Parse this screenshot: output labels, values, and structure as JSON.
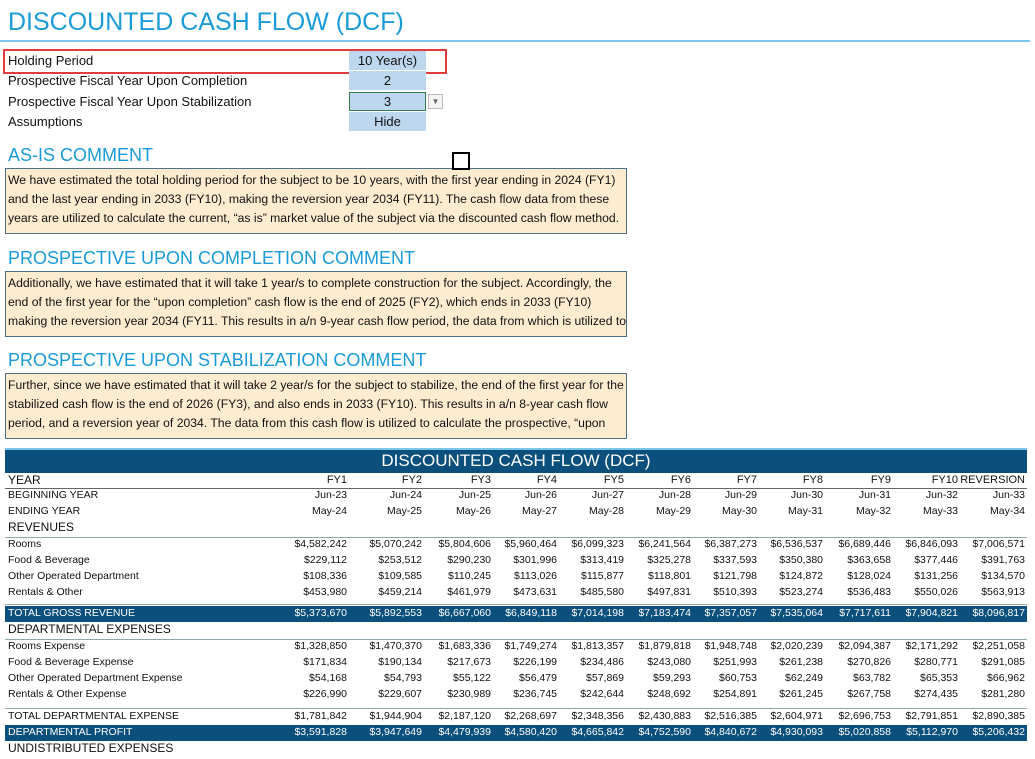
{
  "header": {
    "title": "DISCOUNTED CASH FLOW (DCF)"
  },
  "settings": [
    {
      "label": "Holding Period",
      "value": "10 Year(s)"
    },
    {
      "label": "Prospective Fiscal Year Upon Completion",
      "value": "2"
    },
    {
      "label": "Prospective Fiscal Year Upon Stabilization",
      "value": "3"
    },
    {
      "label": "Assumptions",
      "value": "Hide"
    }
  ],
  "comments": [
    {
      "heading": "AS-IS COMMENT",
      "lines": [
        "We have estimated the total holding period for the subject to be 10 years, with the first year ending in 2024 (FY1)",
        "and the last year ending in 2033 (FY10), making the reversion year 2034 (FY11). The cash flow data from these",
        "years are utilized to calculate the current, “as is” market value of the subject via the discounted cash flow method."
      ]
    },
    {
      "heading": "PROSPECTIVE UPON COMPLETION COMMENT",
      "lines": [
        "Additionally, we have estimated that it will take 1 year/s to complete construction for the subject. Accordingly, the",
        "end of the first year for the “upon completion” cash flow is the end of 2025 (FY2), which ends in 2033 (FY10)",
        "making the reversion year 2034 (FY11. This results in a/n 9-year cash flow period, the data from which is utilized to"
      ]
    },
    {
      "heading": "PROSPECTIVE UPON STABILIZATION COMMENT",
      "lines": [
        "Further, since we have estimated that it will take 2 year/s for the subject to stabilize, the end of the first year for the",
        "stabilized cash flow is the end of 2026 (FY3), and also ends in 2033 (FY10). This results in a/n 8-year cash flow",
        "period, and a reversion year of 2034. The data from this cash flow is utilized to calculate the prospective, “upon"
      ]
    }
  ],
  "table": {
    "title": "DISCOUNTED CASH FLOW (DCF)",
    "columns": [
      "YEAR",
      "FY1",
      "FY2",
      "FY3",
      "FY4",
      "FY5",
      "FY6",
      "FY7",
      "FY8",
      "FY9",
      "FY10",
      "REVERSION"
    ],
    "rows": [
      {
        "label": "BEGINNING YEAR",
        "cells": [
          "Jun-23",
          "Jun-24",
          "Jun-25",
          "Jun-26",
          "Jun-27",
          "Jun-28",
          "Jun-29",
          "Jun-30",
          "Jun-31",
          "Jun-32",
          "Jun-33"
        ]
      },
      {
        "label": "ENDING YEAR",
        "cells": [
          "May-24",
          "May-25",
          "May-26",
          "May-27",
          "May-28",
          "May-29",
          "May-30",
          "May-31",
          "May-32",
          "May-33",
          "May-34"
        ]
      },
      {
        "label": "REVENUES"
      },
      {
        "label": "Rooms",
        "cells": [
          "$4,582,242",
          "$5,070,242",
          "$5,804,606",
          "$5,960,464",
          "$6,099,323",
          "$6,241,564",
          "$6,387,273",
          "$6,536,537",
          "$6,689,446",
          "$6,846,093",
          "$7,006,571"
        ]
      },
      {
        "label": "Food & Beverage",
        "cells": [
          "$229,112",
          "$253,512",
          "$290,230",
          "$301,996",
          "$313,419",
          "$325,278",
          "$337,593",
          "$350,380",
          "$363,658",
          "$377,446",
          "$391,763"
        ]
      },
      {
        "label": "Other Operated Department",
        "cells": [
          "$108,336",
          "$109,585",
          "$110,245",
          "$113,026",
          "$115,877",
          "$118,801",
          "$121,798",
          "$124,872",
          "$128,024",
          "$131,256",
          "$134,570"
        ]
      },
      {
        "label": "Rentals & Other",
        "cells": [
          "$453,980",
          "$459,214",
          "$461,979",
          "$473,631",
          "$485,580",
          "$497,831",
          "$510,393",
          "$523,274",
          "$536,483",
          "$550,026",
          "$563,913"
        ]
      },
      {
        "label": "TOTAL GROSS REVENUE",
        "cells": [
          "$5,373,670",
          "$5,892,553",
          "$6,667,060",
          "$6,849,118",
          "$7,014,198",
          "$7,183,474",
          "$7,357,057",
          "$7,535,064",
          "$7,717,611",
          "$7,904,821",
          "$8,096,817"
        ]
      },
      {
        "label": "DEPARTMENTAL EXPENSES"
      },
      {
        "label": "Rooms Expense",
        "cells": [
          "$1,328,850",
          "$1,470,370",
          "$1,683,336",
          "$1,749,274",
          "$1,813,357",
          "$1,879,818",
          "$1,948,748",
          "$2,020,239",
          "$2,094,387",
          "$2,171,292",
          "$2,251,058"
        ]
      },
      {
        "label": "Food & Beverage Expense",
        "cells": [
          "$171,834",
          "$190,134",
          "$217,673",
          "$226,199",
          "$234,486",
          "$243,080",
          "$251,993",
          "$261,238",
          "$270,826",
          "$280,771",
          "$291,085"
        ]
      },
      {
        "label": "Other Operated Department Expense",
        "cells": [
          "$54,168",
          "$54,793",
          "$55,122",
          "$56,479",
          "$57,869",
          "$59,293",
          "$60,753",
          "$62,249",
          "$63,782",
          "$65,353",
          "$66,962"
        ]
      },
      {
        "label": "Rentals & Other Expense",
        "cells": [
          "$226,990",
          "$229,607",
          "$230,989",
          "$236,745",
          "$242,644",
          "$248,692",
          "$254,891",
          "$261,245",
          "$267,758",
          "$274,435",
          "$281,280"
        ]
      },
      {
        "label": "TOTAL DEPARTMENTAL EXPENSE",
        "cells": [
          "$1,781,842",
          "$1,944,904",
          "$2,187,120",
          "$2,268,697",
          "$2,348,356",
          "$2,430,883",
          "$2,516,385",
          "$2,604,971",
          "$2,696,753",
          "$2,791,851",
          "$2,890,385"
        ]
      },
      {
        "label": "DEPARTMENTAL PROFIT",
        "cells": [
          "$3,591,828",
          "$3,947,649",
          "$4,479,939",
          "$4,580,420",
          "$4,665,842",
          "$4,752,590",
          "$4,840,672",
          "$4,930,093",
          "$5,020,858",
          "$5,112,970",
          "$5,206,432"
        ]
      },
      {
        "label": "UNDISTRIBUTED EXPENSES"
      }
    ]
  }
}
